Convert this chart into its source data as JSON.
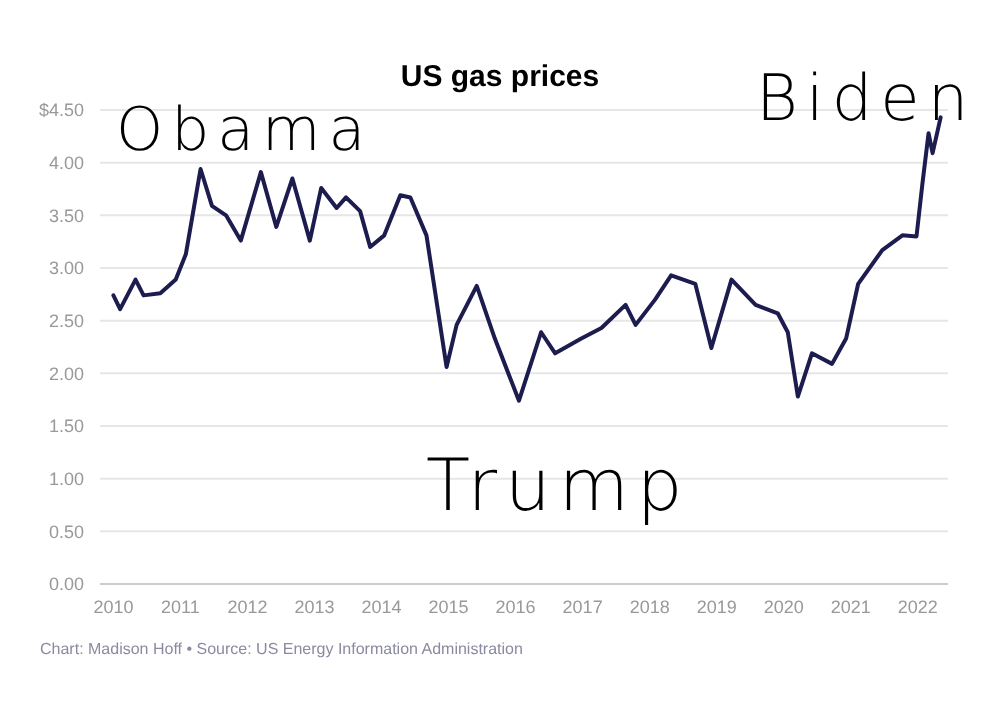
{
  "chart_data": {
    "type": "line",
    "title": "US gas prices",
    "x": [
      2010.0,
      2010.1,
      2010.33,
      2010.45,
      2010.7,
      2010.93,
      2011.08,
      2011.2,
      2011.3,
      2011.47,
      2011.68,
      2011.9,
      2012.2,
      2012.43,
      2012.67,
      2012.93,
      2013.1,
      2013.33,
      2013.47,
      2013.68,
      2013.83,
      2014.04,
      2014.28,
      2014.43,
      2014.67,
      2014.97,
      2015.12,
      2015.42,
      2015.69,
      2016.05,
      2016.38,
      2016.59,
      2016.98,
      2017.28,
      2017.64,
      2017.79,
      2018.08,
      2018.32,
      2018.68,
      2018.92,
      2019.22,
      2019.58,
      2019.91,
      2020.06,
      2020.21,
      2020.42,
      2020.72,
      2020.93,
      2021.11,
      2021.47,
      2021.77,
      2021.98,
      2022.07,
      2022.16,
      2022.22,
      2022.34
    ],
    "series": [
      {
        "color": "#1c1c4e",
        "values": [
          2.74,
          2.61,
          2.89,
          2.74,
          2.76,
          2.89,
          3.13,
          3.57,
          3.94,
          3.59,
          3.5,
          3.26,
          3.91,
          3.39,
          3.85,
          3.26,
          3.76,
          3.57,
          3.67,
          3.54,
          3.2,
          3.31,
          3.69,
          3.67,
          3.31,
          2.06,
          2.46,
          2.83,
          2.33,
          1.74,
          2.39,
          2.19,
          2.33,
          2.43,
          2.65,
          2.46,
          2.7,
          2.93,
          2.85,
          2.24,
          2.89,
          2.65,
          2.57,
          2.39,
          1.78,
          2.19,
          2.09,
          2.33,
          2.85,
          3.17,
          3.31,
          3.3,
          3.81,
          4.28,
          4.09,
          4.43
        ]
      }
    ],
    "xlim": [
      2009.8,
      2022.45
    ],
    "xticks": [
      2010,
      2011,
      2012,
      2013,
      2014,
      2015,
      2016,
      2017,
      2018,
      2019,
      2020,
      2021,
      2022
    ],
    "ylim": [
      0,
      4.5
    ],
    "yticks": [
      {
        "value": 0,
        "label": "0.00"
      },
      {
        "value": 0.5,
        "label": "0.50"
      },
      {
        "value": 1,
        "label": "1.00"
      },
      {
        "value": 1.5,
        "label": "1.50"
      },
      {
        "value": 2,
        "label": "2.00"
      },
      {
        "value": 2.5,
        "label": "2.50"
      },
      {
        "value": 3,
        "label": "3.00"
      },
      {
        "value": 3.5,
        "label": "3.50"
      },
      {
        "value": 4,
        "label": "4.00"
      },
      {
        "value": 4.5,
        "label": "$4.50"
      }
    ],
    "grid": "y",
    "marker": "none",
    "line_style": "solid",
    "legend": false,
    "annotations": [
      "Obama",
      "Trump",
      "Biden",
      "Chart: Madison Hoff • Source: US Energy Information Administration"
    ]
  }
}
